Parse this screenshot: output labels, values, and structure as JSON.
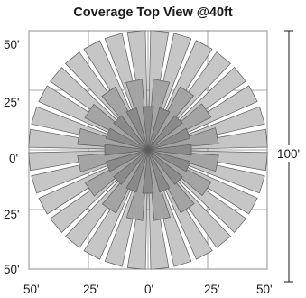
{
  "title": "Coverage Top View @40ft",
  "y_axis_labels": [
    "50'",
    "25'",
    "0'",
    "25'",
    "50'"
  ],
  "x_axis_labels": [
    "50'",
    "25'",
    "0'",
    "25'",
    "50'"
  ],
  "dimension_label": "100'",
  "colors": {
    "beam_long": "#c6c6c6",
    "beam_mid": "#a4a4a4",
    "beam_short": "#8a8a8a",
    "beam_stroke": "#5c5c5c",
    "grid": "#8c8c8c"
  }
}
